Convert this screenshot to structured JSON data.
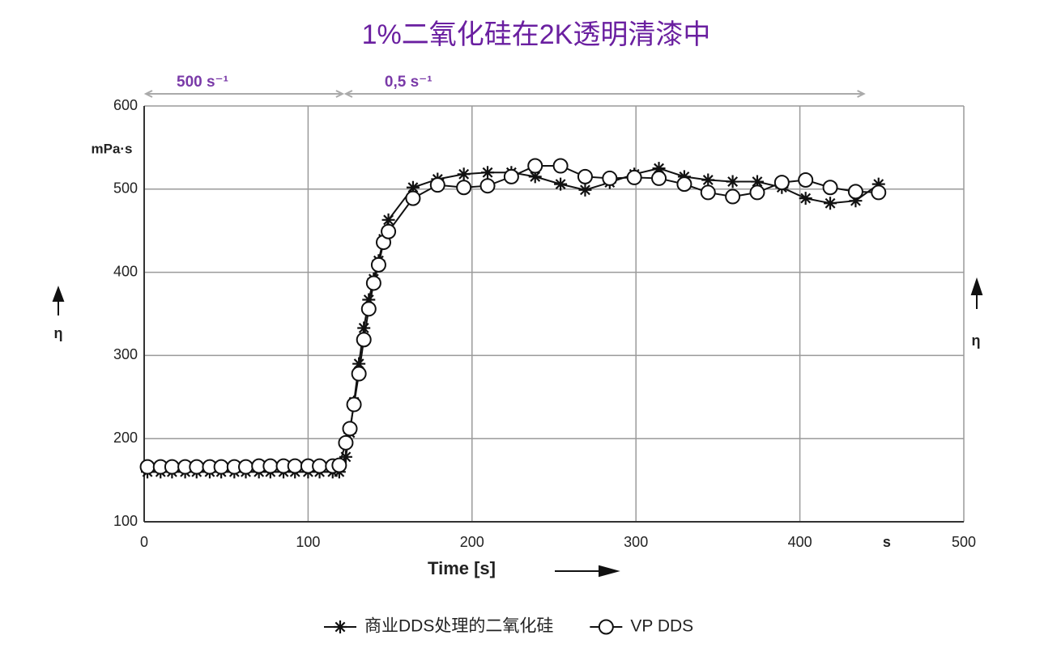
{
  "chart_data": {
    "type": "line",
    "title": "1%二氧化硅在2K透明清漆中",
    "y_unit": "mPa·s",
    "y_label": "η",
    "x_label": "Time [s]",
    "x_unit": "s",
    "annotations": [
      {
        "text": "500 s⁻¹",
        "x": [
          0,
          122
        ]
      },
      {
        "text": "0,5 s⁻¹",
        "x": [
          122,
          440
        ]
      }
    ],
    "x": [
      2,
      10,
      17,
      25,
      32,
      40,
      47,
      55,
      62,
      70,
      77,
      85,
      92,
      100,
      107,
      115,
      119,
      123,
      125.5,
      128,
      131,
      134,
      137,
      140,
      143,
      146,
      149,
      164,
      179,
      195,
      209.5,
      224,
      238.5,
      254,
      269,
      284,
      299,
      314,
      329.5,
      344,
      359,
      374,
      389,
      403.5,
      418.5,
      434,
      448
    ],
    "series": [
      {
        "name": "商业DDS处理的二氧化硅",
        "color": "#111111",
        "marker": "asterisk",
        "values": [
          160,
          160,
          160,
          160,
          160,
          160,
          160,
          160,
          160,
          160,
          160,
          160,
          160,
          160,
          160,
          160,
          160,
          178,
          207,
          244,
          290,
          333,
          367,
          392,
          414,
          440,
          463,
          502,
          512,
          518,
          520,
          520,
          515,
          506,
          499,
          508,
          518,
          525,
          515,
          511,
          509,
          509,
          502,
          489,
          483,
          486,
          506
        ]
      },
      {
        "name": "VP DDS",
        "color": "#111111",
        "marker": "circle",
        "values": [
          166,
          166,
          166,
          166,
          166,
          166,
          166,
          166,
          166,
          167,
          167,
          167,
          167,
          167,
          167,
          167,
          168,
          195,
          212,
          241,
          278,
          319,
          356,
          387,
          409,
          436,
          449,
          489,
          505,
          502,
          504,
          515,
          528,
          528,
          515,
          513,
          514,
          513,
          506,
          496,
          491,
          496,
          508,
          511,
          502,
          497,
          496
        ]
      }
    ],
    "xlim": [
      0,
      500
    ],
    "xticks": [
      0,
      100,
      200,
      300,
      400,
      500
    ],
    "ylim": [
      100,
      600
    ],
    "yticks": [
      100,
      200,
      300,
      400,
      500,
      600
    ],
    "grid": true,
    "legend": "bottom"
  }
}
